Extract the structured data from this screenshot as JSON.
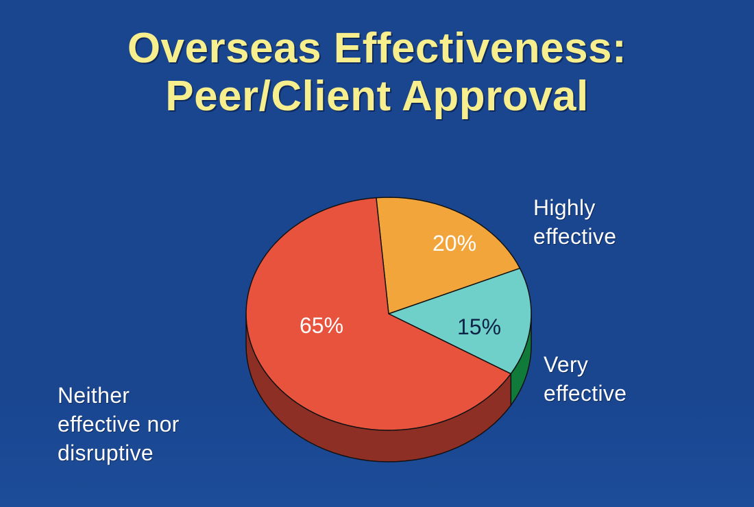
{
  "title": {
    "line1": "Overseas Effectiveness:",
    "line2": "Peer/Client Approval"
  },
  "chart_data": {
    "type": "pie",
    "title": "Overseas Effectiveness: Peer/Client Approval",
    "slices": [
      {
        "label": "Highly effective",
        "value": 20,
        "value_label": "20%",
        "color": "#f2a53a",
        "side_color": "#b87a22",
        "text_color": "#ffffff"
      },
      {
        "label": "Very effective",
        "value": 15,
        "value_label": "15%",
        "color": "#6fcfc9",
        "side_color": "#0f7a3a",
        "text_color": "#0d2346"
      },
      {
        "label": "Neither effective nor disruptive",
        "value": 65,
        "value_label": "65%",
        "color": "#e8533e",
        "side_color": "#8e2f25",
        "text_color": "#ffffff"
      }
    ],
    "legend_lines": {
      "highly": [
        "Highly",
        "effective"
      ],
      "very": [
        "Very",
        "effective"
      ],
      "neither": [
        "Neither",
        "effective nor",
        "disruptive"
      ]
    }
  }
}
